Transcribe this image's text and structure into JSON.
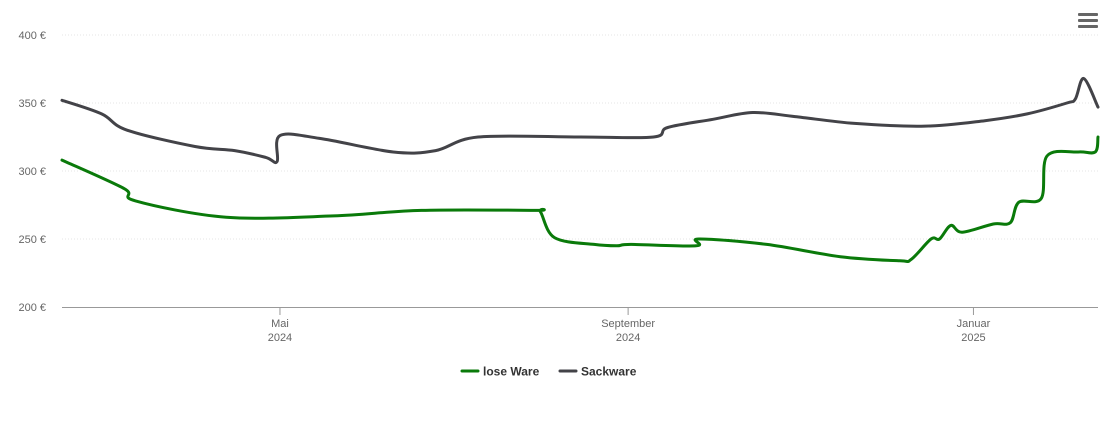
{
  "menu": {
    "icon": "hamburger-menu-icon"
  },
  "chart_data": {
    "type": "line",
    "title": "",
    "xlabel": "",
    "ylabel": "",
    "ylim": [
      200,
      400
    ],
    "y_ticks": [
      "200 €",
      "250 €",
      "300 €",
      "350 €",
      "400 €"
    ],
    "y_tick_values": [
      200,
      250,
      300,
      350,
      400
    ],
    "x_range": [
      "2024-02-14",
      "2025-02-14"
    ],
    "x_ticks": [
      {
        "date": "2024-05-01",
        "month": "Mai",
        "year": "2024"
      },
      {
        "date": "2024-09-01",
        "month": "September",
        "year": "2024"
      },
      {
        "date": "2025-01-01",
        "month": "Januar",
        "year": "2025"
      }
    ],
    "grid": true,
    "legend_position": "bottom-center",
    "series": [
      {
        "name": "lose Ware",
        "color": "#0a7a0a",
        "points": [
          [
            "2024-02-14",
            308
          ],
          [
            "2024-03-07",
            287
          ],
          [
            "2024-03-11",
            278
          ],
          [
            "2024-04-12",
            266
          ],
          [
            "2024-05-20",
            267
          ],
          [
            "2024-06-20",
            271
          ],
          [
            "2024-07-30",
            271
          ],
          [
            "2024-08-01",
            270
          ],
          [
            "2024-08-06",
            251
          ],
          [
            "2024-08-20",
            246
          ],
          [
            "2024-08-28",
            245
          ],
          [
            "2024-09-02",
            246
          ],
          [
            "2024-09-25",
            245
          ],
          [
            "2024-09-26",
            250
          ],
          [
            "2024-10-20",
            246
          ],
          [
            "2024-11-15",
            237
          ],
          [
            "2024-12-06",
            234
          ],
          [
            "2024-12-10",
            235
          ],
          [
            "2024-12-17",
            250
          ],
          [
            "2024-12-20",
            250
          ],
          [
            "2024-12-24",
            260
          ],
          [
            "2024-12-28",
            255
          ],
          [
            "2025-01-08",
            261
          ],
          [
            "2025-01-14",
            262
          ],
          [
            "2025-01-17",
            277
          ],
          [
            "2025-01-25",
            280
          ],
          [
            "2025-01-27",
            311
          ],
          [
            "2025-02-07",
            314
          ],
          [
            "2025-02-13",
            314
          ],
          [
            "2025-02-14",
            325
          ]
        ]
      },
      {
        "name": "Sackware",
        "color": "#434348",
        "points": [
          [
            "2024-02-14",
            352
          ],
          [
            "2024-02-28",
            342
          ],
          [
            "2024-03-08",
            330
          ],
          [
            "2024-04-01",
            318
          ],
          [
            "2024-04-15",
            315
          ],
          [
            "2024-04-26",
            310
          ],
          [
            "2024-04-30",
            307
          ],
          [
            "2024-05-01",
            326
          ],
          [
            "2024-05-15",
            324
          ],
          [
            "2024-06-10",
            314
          ],
          [
            "2024-06-25",
            315
          ],
          [
            "2024-07-10",
            325
          ],
          [
            "2024-08-15",
            325
          ],
          [
            "2024-09-10",
            325
          ],
          [
            "2024-09-15",
            332
          ],
          [
            "2024-10-01",
            338
          ],
          [
            "2024-10-15",
            343
          ],
          [
            "2024-10-30",
            340
          ],
          [
            "2024-11-20",
            335
          ],
          [
            "2024-12-15",
            333
          ],
          [
            "2025-01-05",
            337
          ],
          [
            "2025-01-20",
            342
          ],
          [
            "2025-02-03",
            350
          ],
          [
            "2025-02-06",
            353
          ],
          [
            "2025-02-09",
            368
          ],
          [
            "2025-02-14",
            347
          ]
        ]
      }
    ]
  }
}
